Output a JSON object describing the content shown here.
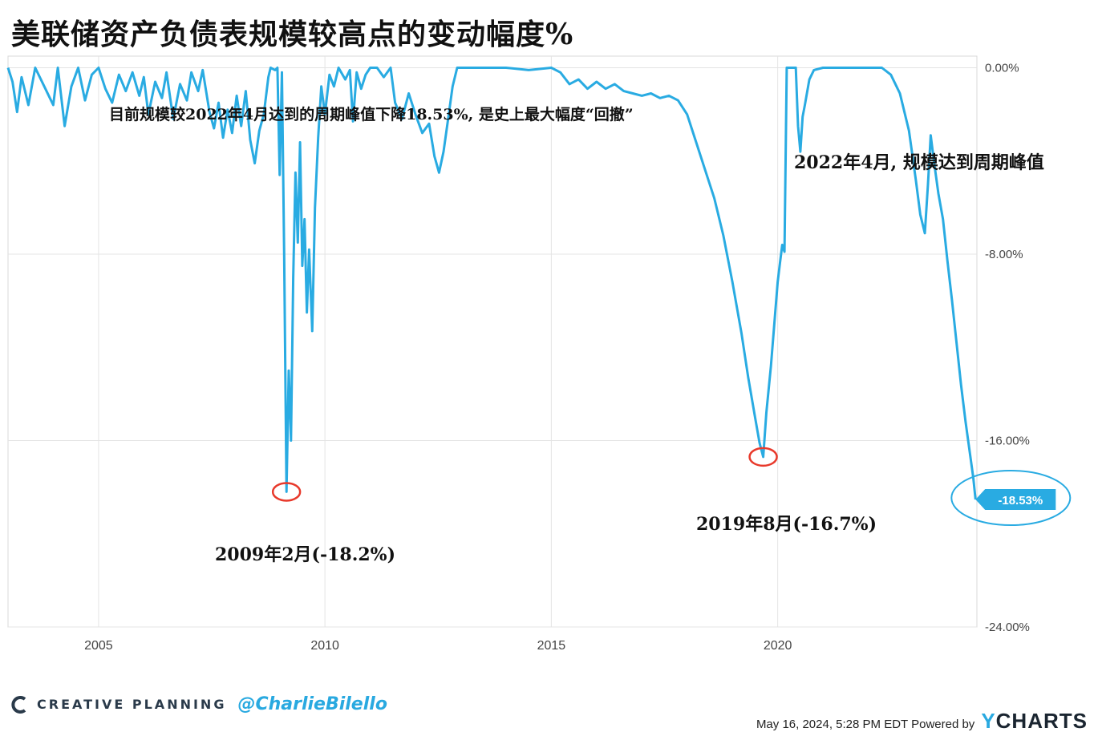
{
  "title": "美联储资产负债表规模较高点的变动幅度%",
  "annotations": {
    "top_note": "目前规模较2022年4月达到的周期峰值下降18.53%, 是史上最大幅度“回撤”",
    "peak_note": "2022年4月, 规模达到周期峰值",
    "trough_2009": "2009年2月(-18.2%)",
    "trough_2019": "2019年8月(-16.7%)"
  },
  "colors": {
    "line": "#29abe2",
    "highlight_circle": "#e8392b",
    "callout_ellipse": "#29abe2",
    "grid": "#e4e4e4"
  },
  "footer": {
    "brand": "CREATIVE PLANNING",
    "handle": "@CharlieBilello",
    "timestamp": "May 16, 2024, 5:28 PM EDT Powered by",
    "ycharts_y": "Y",
    "ycharts_rest": "CHARTS"
  },
  "chart_data": {
    "type": "line",
    "title": "美联储资产负债表规模较高点的变动幅度%",
    "xlim": [
      2003.0,
      2024.4
    ],
    "ylim": [
      -24,
      0.5
    ],
    "x_ticks": [
      2005,
      2010,
      2015,
      2020
    ],
    "x_tick_labels": [
      "2005",
      "2010",
      "2015",
      "2020"
    ],
    "y_ticks": [
      0,
      -8,
      -16,
      -24
    ],
    "y_tick_labels": [
      "0.00%",
      "-8.00%",
      "-16.00%",
      "-24.00%"
    ],
    "grid": true,
    "legend": "none",
    "last_value_label": "-18.53%",
    "series": [
      {
        "values": [
          [
            2003.0,
            0.0
          ],
          [
            2003.1,
            -0.6
          ],
          [
            2003.2,
            -1.9
          ],
          [
            2003.3,
            -0.4
          ],
          [
            2003.45,
            -1.6
          ],
          [
            2003.6,
            0.0
          ],
          [
            2003.8,
            -0.8
          ],
          [
            2004.0,
            -1.6
          ],
          [
            2004.1,
            0.0
          ],
          [
            2004.25,
            -2.5
          ],
          [
            2004.4,
            -0.8
          ],
          [
            2004.55,
            0.0
          ],
          [
            2004.7,
            -1.4
          ],
          [
            2004.85,
            -0.3
          ],
          [
            2005.0,
            0.0
          ],
          [
            2005.15,
            -0.9
          ],
          [
            2005.3,
            -1.5
          ],
          [
            2005.45,
            -0.3
          ],
          [
            2005.6,
            -1.0
          ],
          [
            2005.75,
            -0.2
          ],
          [
            2005.9,
            -1.2
          ],
          [
            2006.0,
            -0.4
          ],
          [
            2006.1,
            -2.0
          ],
          [
            2006.25,
            -0.6
          ],
          [
            2006.4,
            -1.3
          ],
          [
            2006.5,
            -0.2
          ],
          [
            2006.65,
            -2.2
          ],
          [
            2006.8,
            -0.7
          ],
          [
            2006.95,
            -1.4
          ],
          [
            2007.05,
            -0.2
          ],
          [
            2007.2,
            -1.0
          ],
          [
            2007.3,
            -0.1
          ],
          [
            2007.45,
            -1.9
          ],
          [
            2007.55,
            -2.6
          ],
          [
            2007.65,
            -1.5
          ],
          [
            2007.75,
            -3.0
          ],
          [
            2007.85,
            -1.8
          ],
          [
            2007.95,
            -2.8
          ],
          [
            2008.05,
            -1.2
          ],
          [
            2008.15,
            -2.5
          ],
          [
            2008.25,
            -1.0
          ],
          [
            2008.35,
            -3.1
          ],
          [
            2008.45,
            -4.1
          ],
          [
            2008.55,
            -2.7
          ],
          [
            2008.65,
            -2.0
          ],
          [
            2008.75,
            -0.4
          ],
          [
            2008.8,
            0.0
          ],
          [
            2008.9,
            -0.1
          ],
          [
            2008.95,
            0.0
          ],
          [
            2009.0,
            -4.6
          ],
          [
            2009.05,
            -0.2
          ],
          [
            2009.1,
            -8.0
          ],
          [
            2009.15,
            -18.2
          ],
          [
            2009.2,
            -13.0
          ],
          [
            2009.25,
            -16.0
          ],
          [
            2009.3,
            -9.0
          ],
          [
            2009.35,
            -4.5
          ],
          [
            2009.4,
            -7.5
          ],
          [
            2009.45,
            -3.2
          ],
          [
            2009.5,
            -8.5
          ],
          [
            2009.55,
            -6.5
          ],
          [
            2009.6,
            -10.5
          ],
          [
            2009.65,
            -7.8
          ],
          [
            2009.72,
            -11.3
          ],
          [
            2009.78,
            -6.0
          ],
          [
            2009.85,
            -3.0
          ],
          [
            2009.92,
            -0.8
          ],
          [
            2010.0,
            -2.0
          ],
          [
            2010.1,
            -0.3
          ],
          [
            2010.2,
            -0.8
          ],
          [
            2010.3,
            0.0
          ],
          [
            2010.45,
            -0.5
          ],
          [
            2010.55,
            -0.1
          ],
          [
            2010.62,
            -2.3
          ],
          [
            2010.7,
            -0.2
          ],
          [
            2010.8,
            -0.9
          ],
          [
            2010.9,
            -0.3
          ],
          [
            2011.0,
            0.0
          ],
          [
            2011.15,
            0.0
          ],
          [
            2011.3,
            -0.4
          ],
          [
            2011.45,
            0.0
          ],
          [
            2011.55,
            -1.5
          ],
          [
            2011.7,
            -2.2
          ],
          [
            2011.85,
            -1.1
          ],
          [
            2012.0,
            -2.0
          ],
          [
            2012.15,
            -2.8
          ],
          [
            2012.3,
            -2.4
          ],
          [
            2012.42,
            -3.8
          ],
          [
            2012.52,
            -4.5
          ],
          [
            2012.62,
            -3.6
          ],
          [
            2012.72,
            -2.2
          ],
          [
            2012.82,
            -0.8
          ],
          [
            2012.92,
            0.0
          ],
          [
            2013.5,
            0.0
          ],
          [
            2014.0,
            0.0
          ],
          [
            2014.5,
            -0.1
          ],
          [
            2015.0,
            0.0
          ],
          [
            2015.2,
            -0.2
          ],
          [
            2015.4,
            -0.7
          ],
          [
            2015.6,
            -0.5
          ],
          [
            2015.8,
            -0.9
          ],
          [
            2016.0,
            -0.6
          ],
          [
            2016.2,
            -0.9
          ],
          [
            2016.4,
            -0.7
          ],
          [
            2016.6,
            -1.0
          ],
          [
            2016.8,
            -1.1
          ],
          [
            2017.0,
            -1.2
          ],
          [
            2017.2,
            -1.1
          ],
          [
            2017.4,
            -1.3
          ],
          [
            2017.6,
            -1.2
          ],
          [
            2017.8,
            -1.4
          ],
          [
            2018.0,
            -2.0
          ],
          [
            2018.2,
            -3.2
          ],
          [
            2018.4,
            -4.4
          ],
          [
            2018.6,
            -5.6
          ],
          [
            2018.8,
            -7.2
          ],
          [
            2019.0,
            -9.2
          ],
          [
            2019.2,
            -11.4
          ],
          [
            2019.35,
            -13.3
          ],
          [
            2019.5,
            -15.0
          ],
          [
            2019.6,
            -16.1
          ],
          [
            2019.68,
            -16.7
          ],
          [
            2019.75,
            -14.8
          ],
          [
            2019.85,
            -12.8
          ],
          [
            2019.95,
            -10.4
          ],
          [
            2020.0,
            -9.2
          ],
          [
            2020.05,
            -8.4
          ],
          [
            2020.1,
            -7.6
          ],
          [
            2020.15,
            -7.9
          ],
          [
            2020.2,
            0.0
          ],
          [
            2020.4,
            0.0
          ],
          [
            2020.45,
            -2.5
          ],
          [
            2020.5,
            -3.6
          ],
          [
            2020.55,
            -2.1
          ],
          [
            2020.6,
            -1.6
          ],
          [
            2020.7,
            -0.5
          ],
          [
            2020.8,
            -0.1
          ],
          [
            2021.0,
            0.0
          ],
          [
            2021.5,
            0.0
          ],
          [
            2022.0,
            0.0
          ],
          [
            2022.3,
            0.0
          ],
          [
            2022.5,
            -0.3
          ],
          [
            2022.7,
            -1.1
          ],
          [
            2022.9,
            -2.7
          ],
          [
            2023.05,
            -4.8
          ],
          [
            2023.15,
            -6.3
          ],
          [
            2023.25,
            -7.1
          ],
          [
            2023.32,
            -5.0
          ],
          [
            2023.38,
            -2.9
          ],
          [
            2023.45,
            -4.0
          ],
          [
            2023.55,
            -5.4
          ],
          [
            2023.65,
            -6.5
          ],
          [
            2023.75,
            -8.3
          ],
          [
            2023.85,
            -10.0
          ],
          [
            2023.95,
            -11.8
          ],
          [
            2024.05,
            -13.6
          ],
          [
            2024.15,
            -15.2
          ],
          [
            2024.25,
            -16.6
          ],
          [
            2024.32,
            -17.6
          ],
          [
            2024.37,
            -18.53
          ]
        ]
      }
    ],
    "highlighted_points": [
      {
        "x": 2009.15,
        "y": -18.2
      },
      {
        "x": 2019.68,
        "y": -16.7
      },
      {
        "x": 2024.37,
        "y": -18.53
      }
    ]
  }
}
